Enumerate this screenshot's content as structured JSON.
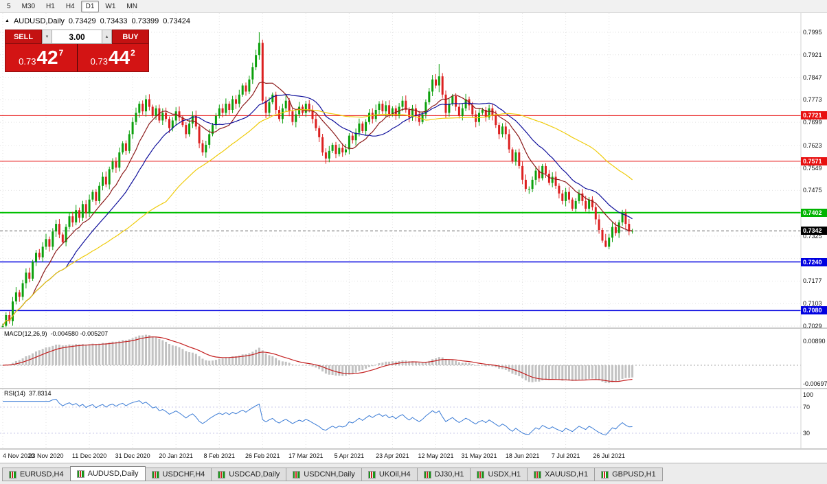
{
  "toolbar": {
    "timeframes": [
      "5",
      "M30",
      "H1",
      "H4",
      "D1",
      "W1",
      "MN"
    ],
    "active": "D1"
  },
  "header": {
    "symbol": "AUDUSD,Daily",
    "open": "0.73429",
    "high": "0.73433",
    "low": "0.73399",
    "close": "0.73424"
  },
  "icons": {
    "oct_toggle": "▲",
    "lot_decrease": "▼",
    "lot_increase": "▲"
  },
  "trade_panel": {
    "sell_label": "SELL",
    "buy_label": "BUY",
    "lot_value": "3.00",
    "sell_price": {
      "prefix": "0.73",
      "big": "42",
      "sup": "7"
    },
    "buy_price": {
      "prefix": "0.73",
      "big": "44",
      "sup": "2"
    }
  },
  "price_axis": {
    "labels": [
      {
        "text": "0.7995",
        "value": 0.7995
      },
      {
        "text": "0.7921",
        "value": 0.7921
      },
      {
        "text": "0.7847",
        "value": 0.7847
      },
      {
        "text": "0.7773",
        "value": 0.7773
      },
      {
        "text": "0.7699",
        "value": 0.7699
      },
      {
        "text": "0.7623",
        "value": 0.7623
      },
      {
        "text": "0.7549",
        "value": 0.7549
      },
      {
        "text": "0.7475",
        "value": 0.7475
      },
      {
        "text": "0.7325",
        "value": 0.7325
      },
      {
        "text": "0.7177",
        "value": 0.7177
      },
      {
        "text": "0.7103",
        "value": 0.7103
      },
      {
        "text": "0.7029",
        "value": 0.7029
      }
    ],
    "badges": [
      {
        "text": "0.7721",
        "value": 0.7721,
        "bg": "#E81010"
      },
      {
        "text": "0.7571",
        "value": 0.7571,
        "bg": "#E81010"
      },
      {
        "text": "0.7402",
        "value": 0.7402,
        "bg": "#00B400"
      },
      {
        "text": "0.7342",
        "value": 0.7342,
        "bg": "#000000"
      },
      {
        "text": "0.7240",
        "value": 0.724,
        "bg": "#0000E0"
      },
      {
        "text": "0.7080",
        "value": 0.708,
        "bg": "#0000E0"
      }
    ]
  },
  "levels": [
    {
      "price": 0.7721,
      "color": "#E81010",
      "width": 1
    },
    {
      "price": 0.7571,
      "color": "#E81010",
      "width": 1
    },
    {
      "price": 0.7402,
      "color": "#00C000",
      "width": 2
    },
    {
      "price": 0.724,
      "color": "#0000E0",
      "width": 1.5
    },
    {
      "price": 0.708,
      "color": "#0000E0",
      "width": 1.5
    }
  ],
  "current_price": {
    "text": "0.7342",
    "value": 0.7342
  },
  "date_axis": [
    "4 Nov 2020",
    "23 Nov 2020",
    "11 Dec 2020",
    "31 Dec 2020",
    "20 Jan 2021",
    "8 Feb 2021",
    "26 Feb 2021",
    "17 Mar 2021",
    "5 Apr 2021",
    "23 Apr 2021",
    "12 May 2021",
    "31 May 2021",
    "18 Jun 2021",
    "7 Jul 2021",
    "26 Jul 2021"
  ],
  "macd": {
    "label": "MACD(12,26,9)",
    "values": "-0.004580 -0.005207",
    "axis_top": "0.00890",
    "axis_bottom": "-0.00697",
    "fast": 12,
    "slow": 26,
    "signal": 9
  },
  "rsi": {
    "label": "RSI(14)",
    "value": "37.8314",
    "axis_labels": [
      "100",
      "70",
      "30"
    ],
    "period": 14,
    "levels": [
      70,
      30
    ]
  },
  "tabs": {
    "items": [
      "EURUSD,H4",
      "AUDUSD,Daily",
      "USDCHF,H4",
      "USDCAD,Daily",
      "USDCNH,Daily",
      "UKOil,H4",
      "DJ30,H1",
      "USDX,H1",
      "XAUUSD,H1",
      "GBPUSD,H1"
    ],
    "active_index": 1
  },
  "colors": {
    "bull": "#0CA00C",
    "bear": "#DC2020",
    "ma_fast": "#8B1A1A",
    "ma_mid": "#10109B",
    "ma_slow": "#EFCB0A",
    "macd_hist": "#C2C2C2",
    "macd_signal": "#C42020",
    "rsi_line": "#3A7BD5",
    "grid": "#E2E2E2",
    "separator": "#9A9A9A",
    "bid_line": "#666666"
  },
  "chart_data": {
    "type": "candlestick",
    "symbol": "AUDUSD",
    "timeframe": "Daily",
    "first_open": 0.7005,
    "y_range": [
      0.7026,
      0.806
    ],
    "closes": [
      0.703,
      0.7065,
      0.7045,
      0.711,
      0.714,
      0.7125,
      0.717,
      0.7205,
      0.7185,
      0.724,
      0.727,
      0.7255,
      0.729,
      0.7315,
      0.729,
      0.734,
      0.7365,
      0.733,
      0.7305,
      0.7355,
      0.739,
      0.737,
      0.741,
      0.7385,
      0.743,
      0.74,
      0.7445,
      0.747,
      0.744,
      0.749,
      0.752,
      0.7495,
      0.7545,
      0.757,
      0.755,
      0.76,
      0.763,
      0.7605,
      0.766,
      0.77,
      0.773,
      0.776,
      0.7735,
      0.7775,
      0.775,
      0.772,
      0.7745,
      0.7705,
      0.773,
      0.771,
      0.768,
      0.7705,
      0.7735,
      0.7715,
      0.769,
      0.766,
      0.7695,
      0.772,
      0.7685,
      0.763,
      0.76,
      0.7625,
      0.766,
      0.769,
      0.772,
      0.7745,
      0.773,
      0.776,
      0.774,
      0.7775,
      0.776,
      0.779,
      0.782,
      0.78,
      0.784,
      0.788,
      0.792,
      0.796,
      0.777,
      0.773,
      0.7765,
      0.779,
      0.774,
      0.771,
      0.7745,
      0.777,
      0.7735,
      0.77,
      0.7725,
      0.775,
      0.773,
      0.776,
      0.774,
      0.771,
      0.768,
      0.765,
      0.76,
      0.758,
      0.7605,
      0.7625,
      0.7595,
      0.7615,
      0.76,
      0.761,
      0.7655,
      0.764,
      0.7665,
      0.7695,
      0.767,
      0.77,
      0.773,
      0.771,
      0.774,
      0.776,
      0.7735,
      0.7755,
      0.7725,
      0.7745,
      0.772,
      0.775,
      0.777,
      0.774,
      0.7715,
      0.7745,
      0.772,
      0.77,
      0.7725,
      0.7765,
      0.78,
      0.784,
      0.782,
      0.785,
      0.779,
      0.773,
      0.776,
      0.7785,
      0.775,
      0.772,
      0.7745,
      0.7775,
      0.7755,
      0.7725,
      0.77,
      0.773,
      0.774,
      0.7715,
      0.7745,
      0.772,
      0.769,
      0.766,
      0.7685,
      0.766,
      0.761,
      0.757,
      0.76,
      0.7555,
      0.751,
      0.748,
      0.748,
      0.751,
      0.754,
      0.7515,
      0.7555,
      0.753,
      0.75,
      0.752,
      0.749,
      0.7465,
      0.744,
      0.747,
      0.7445,
      0.7415,
      0.744,
      0.7465,
      0.744,
      0.7415,
      0.7445,
      0.742,
      0.738,
      0.7345,
      0.731,
      0.729,
      0.732,
      0.7355,
      0.7335,
      0.737,
      0.74,
      0.7365,
      0.734,
      0.7342
    ],
    "wick_overrides": {
      "77": [
        0.7995,
        0.7905
      ],
      "131": [
        0.7891,
        0.7798
      ],
      "181": [
        0.7332,
        0.7288
      ]
    },
    "moving_averages": [
      {
        "period": 10,
        "color": "#8B1A1A"
      },
      {
        "period": 20,
        "color": "#10109B"
      },
      {
        "period": 50,
        "color": "#EFCB0A"
      }
    ]
  }
}
